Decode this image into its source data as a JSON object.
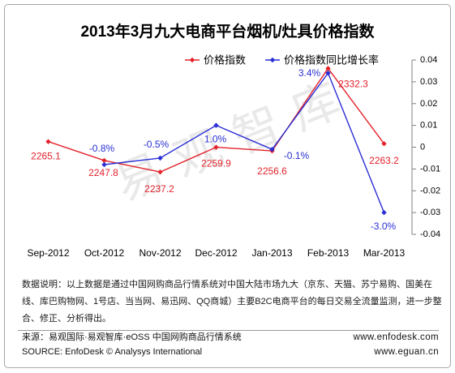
{
  "chart_data": {
    "type": "line",
    "title": "2013年3月九大电商平台烟机/灶具价格指数",
    "xlabel": "",
    "ylabel": "",
    "categories": [
      "Sep-2012",
      "Oct-2012",
      "Nov-2012",
      "Dec-2012",
      "Jan-2013",
      "Feb-2013",
      "Mar-2013"
    ],
    "series": [
      {
        "name": "价格指数",
        "y_axis": "left",
        "color": "#e3222b",
        "marker": "diamond",
        "values": [
          2265.1,
          2247.8,
          2237.2,
          2259.9,
          2256.6,
          2332.3,
          2263.2
        ],
        "data_labels": [
          "2265.1",
          "2247.8",
          "2237.2",
          "2259.9",
          "2256.6",
          "2332.3",
          "2263.2"
        ]
      },
      {
        "name": "价格指数同比增长率",
        "y_axis": "right",
        "color": "#2a2fd4",
        "marker": "diamond",
        "values": [
          null,
          -0.008,
          -0.005,
          0.01,
          -0.001,
          0.034,
          -0.03
        ],
        "data_labels": [
          null,
          "-0.8%",
          "-0.5%",
          "1.0%",
          "-0.1%",
          "3.4%",
          "-3.0%"
        ]
      }
    ],
    "y_left": {
      "visible": false,
      "range": [
        2180,
        2340
      ]
    },
    "y_right": {
      "visible": true,
      "range": [
        -0.04,
        0.04
      ],
      "ticks": [
        0.04,
        0.03,
        0.02,
        0.01,
        0,
        -0.01,
        -0.02,
        -0.03,
        -0.04
      ],
      "tick_labels": [
        "0.04",
        "0.03",
        "0.02",
        "0.01",
        "0",
        "-0.01",
        "-0.02",
        "-0.03",
        "-0.04"
      ]
    },
    "grid": false,
    "legend": "top"
  },
  "watermark": "易观智库",
  "description": {
    "lines": [
      "数据说明：以上数据是通过中国网购商品行情系统对中国大陆市场九大（京东、天猫、苏宁易购、国美在",
      "线、库巴购物网、1号店、当当网、易迅网、QQ商城）主要B2C电商平台的每日交易全流量监测，进一步整",
      "合、修正、分析得出。"
    ]
  },
  "footer": {
    "source_cn": "来源：易观国际·易观智库·eOSS 中国网购商品行情系统",
    "source_en": "SOURCE: EnfoDesk © Analysys International",
    "url_enfodesk": "www.enfodesk.com",
    "url_eguan": "www.eguan.cn"
  }
}
